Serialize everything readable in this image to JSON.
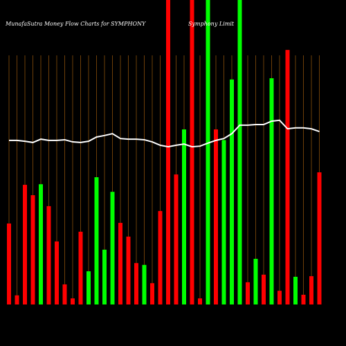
{
  "chart_data": {
    "type": "bar",
    "title": "MunafaSutra  Money Flow  Charts for SYMPHONY",
    "subtitle": "Symphony Limit",
    "categories": [
      null,
      null,
      null,
      null,
      null,
      null,
      null,
      null,
      null,
      null,
      null,
      null,
      null,
      null,
      null,
      null,
      null,
      null,
      null,
      null,
      null,
      null,
      null,
      null,
      null,
      null,
      null,
      null,
      null,
      null,
      null,
      null,
      null,
      null,
      null,
      null,
      null,
      null,
      null,
      null
    ],
    "values": [
      26.6,
      3,
      39.3,
      35.9,
      39.5,
      32.3,
      20.7,
      6.6,
      2,
      23.9,
      10.9,
      41.8,
      18,
      37,
      26.8,
      22.3,
      13.6,
      13,
      7,
      30.7,
      100,
      42.7,
      57.5,
      100,
      2,
      100,
      57.5,
      54,
      73.9,
      100,
      7.3,
      15,
      9.8,
      74.3,
      4.5,
      83.6,
      9.1,
      3.2,
      9.3,
      43.4
    ],
    "colors": [
      "#ff0000",
      "#ff0000",
      "#ff0000",
      "#ff0000",
      "#00ff00",
      "#ff0000",
      "#ff0000",
      "#ff0000",
      "#ff0000",
      "#ff0000",
      "#00ff00",
      "#00ff00",
      "#00ff00",
      "#00ff00",
      "#ff0000",
      "#ff0000",
      "#ff0000",
      "#00ff00",
      "#ff0000",
      "#ff0000",
      "#ff0000",
      "#ff0000",
      "#00ff00",
      "#ff0000",
      "#ff0000",
      "#00ff00",
      "#ff0000",
      "#00ff00",
      "#00ff00",
      "#00ff00",
      "#ff0000",
      "#00ff00",
      "#ff0000",
      "#00ff00",
      "#ff0000",
      "#ff0000",
      "#00ff00",
      "#ff0000",
      "#ff0000",
      "#ff0000"
    ],
    "line": {
      "color": "#ffffff",
      "values": [
        53.9,
        53.9,
        53.6,
        53.2,
        54.3,
        53.9,
        53.9,
        54.1,
        53.4,
        53.2,
        53.6,
        55,
        55.5,
        56.1,
        54.5,
        54.3,
        54.3,
        54.1,
        53.4,
        52.3,
        51.8,
        52.3,
        52.7,
        51.8,
        52,
        53,
        53.9,
        54.5,
        56.1,
        58.9,
        58.9,
        59.1,
        59.1,
        60.2,
        60.5,
        57.7,
        58,
        58,
        57.7,
        56.8
      ]
    },
    "ylim": [
      0,
      100
    ]
  }
}
